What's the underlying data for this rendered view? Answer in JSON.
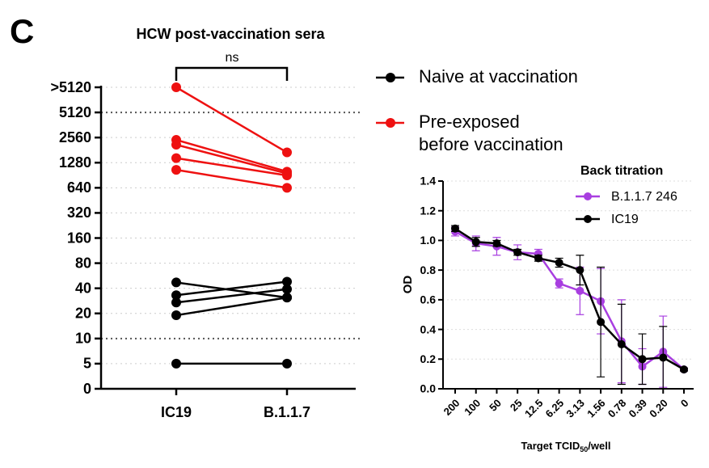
{
  "panel_label": "C",
  "chart_data": [
    {
      "type": "paired",
      "title": "HCW post-vaccination sera",
      "categories": [
        "IC19",
        "B.1.1.7"
      ],
      "yscale": "log2",
      "ylim": [
        0,
        10240
      ],
      "yticks": [
        0,
        5,
        10,
        20,
        40,
        80,
        160,
        320,
        640,
        1280,
        2560,
        5120,
        {
          "value": 10240,
          "label": ">5120"
        }
      ],
      "grid": true,
      "reference_lines": [
        10,
        5120
      ],
      "annotation": "ns",
      "series": [
        {
          "name": "Naive at vaccination",
          "color": "#000000",
          "values": [
            [
              47,
              31
            ],
            [
              33,
              48
            ],
            [
              27,
              39
            ],
            [
              19,
              31
            ],
            [
              5,
              5
            ]
          ]
        },
        {
          "name": "Pre-exposed\nbefore vaccination",
          "color": "#ee1111",
          "values": [
            [
              10240,
              1700
            ],
            [
              2400,
              1000
            ],
            [
              2100,
              950
            ],
            [
              1450,
              900
            ],
            [
              1050,
              640
            ]
          ]
        }
      ]
    },
    {
      "type": "line",
      "legend_title": "Back titration",
      "categories": [
        "200",
        "100",
        "50",
        "25",
        "12.5",
        "6.25",
        "3.13",
        "1.56",
        "0.78",
        "0.39",
        "0.20",
        "0"
      ],
      "xlabel": [
        "Target TCID",
        "50",
        "/well"
      ],
      "ylabel": "OD",
      "ylim": [
        0,
        1.4
      ],
      "yticks": [
        {
          "value": 0,
          "label": "0.0"
        },
        {
          "value": 0.2,
          "label": "0.2"
        },
        {
          "value": 0.4,
          "label": "0.4"
        },
        {
          "value": 0.6,
          "label": "0.6"
        },
        {
          "value": 0.8,
          "label": "0.8"
        },
        {
          "value": 1,
          "label": "1.0"
        },
        {
          "value": 1.2,
          "label": "1.2"
        },
        {
          "value": 1.4,
          "label": "1.4"
        }
      ],
      "grid": true,
      "series": [
        {
          "name": "B.1.1.7 246",
          "color": "#a83ee0",
          "values": [
            1.06,
            0.98,
            0.96,
            0.92,
            0.91,
            0.71,
            0.66,
            0.59,
            0.32,
            0.15,
            0.25,
            0.13
          ],
          "errors": [
            0.03,
            0.05,
            0.06,
            0.05,
            0.03,
            0.03,
            0.16,
            0.22,
            0.28,
            0.12,
            0.24,
            0.01
          ]
        },
        {
          "name": "IC19",
          "color": "#000000",
          "values": [
            1.08,
            0.99,
            0.98,
            0.92,
            0.88,
            0.85,
            0.8,
            0.45,
            0.3,
            0.2,
            0.21,
            0.13
          ],
          "errors": [
            0.02,
            0.03,
            0.02,
            0.02,
            0.02,
            0.03,
            0.1,
            0.37,
            0.27,
            0.17,
            0.21,
            0.01
          ]
        }
      ]
    }
  ]
}
